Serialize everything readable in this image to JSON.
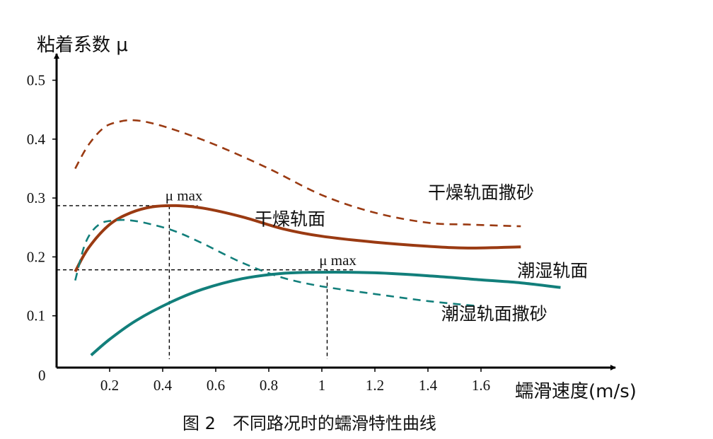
{
  "chart_data": {
    "type": "line",
    "title": "图 2　不同路况时的蠕滑特性曲线",
    "ylabel": "粘着系数 μ",
    "xlabel": "蠕滑速度(m/s)",
    "origin_label": "0",
    "x_ticks": [
      "0.2",
      "0.4",
      "0.6",
      "0.8",
      "1",
      "1.2",
      "1.4",
      "1.6"
    ],
    "x_tick_values": [
      0.2,
      0.4,
      0.6,
      0.8,
      1.0,
      1.2,
      1.4,
      1.6
    ],
    "y_ticks": [
      "0.1",
      "0.2",
      "0.3",
      "0.4",
      "0.5"
    ],
    "y_tick_values": [
      0.1,
      0.2,
      0.3,
      0.4,
      0.5
    ],
    "grid": false,
    "colors": {
      "dry": "#9a3a12",
      "wet": "#127f7b"
    },
    "series": [
      {
        "name": "干燥轨面撒砂",
        "color": "#9a3a12",
        "dash": true,
        "x": [
          0.07,
          0.12,
          0.18,
          0.24,
          0.29,
          0.35,
          0.45,
          0.6,
          0.8,
          1.0,
          1.2,
          1.4,
          1.55,
          1.75
        ],
        "y": [
          0.35,
          0.39,
          0.42,
          0.43,
          0.432,
          0.428,
          0.415,
          0.39,
          0.35,
          0.305,
          0.275,
          0.258,
          0.255,
          0.252
        ]
      },
      {
        "name": "干燥轨面",
        "color": "#9a3a12",
        "dash": false,
        "x": [
          0.07,
          0.12,
          0.2,
          0.28,
          0.36,
          0.45,
          0.55,
          0.7,
          0.85,
          1.0,
          1.2,
          1.4,
          1.55,
          1.75
        ],
        "y": [
          0.175,
          0.215,
          0.255,
          0.275,
          0.285,
          0.287,
          0.283,
          0.268,
          0.248,
          0.235,
          0.225,
          0.218,
          0.215,
          0.217
        ]
      },
      {
        "name": "潮湿轨面",
        "color": "#127f7b",
        "dash": false,
        "x": [
          0.13,
          0.2,
          0.3,
          0.43,
          0.55,
          0.7,
          0.85,
          1.0,
          1.2,
          1.4,
          1.6,
          1.75,
          1.9
        ],
        "y": [
          0.033,
          0.06,
          0.092,
          0.123,
          0.145,
          0.163,
          0.172,
          0.174,
          0.173,
          0.168,
          0.161,
          0.156,
          0.148
        ]
      },
      {
        "name": "潮湿轨面撒砂",
        "color": "#127f7b",
        "dash": true,
        "x": [
          0.07,
          0.11,
          0.16,
          0.22,
          0.28,
          0.36,
          0.45,
          0.55,
          0.7,
          0.85,
          1.0,
          1.2,
          1.4,
          1.6
        ],
        "y": [
          0.16,
          0.225,
          0.255,
          0.262,
          0.262,
          0.255,
          0.243,
          0.223,
          0.19,
          0.165,
          0.15,
          0.137,
          0.125,
          0.116
        ]
      }
    ],
    "series_labels": [
      {
        "series": 0,
        "text": "干燥轨面撒砂",
        "x": 1.6,
        "y": 0.299
      },
      {
        "series": 1,
        "text": "干燥轨面",
        "x": 0.88,
        "y": 0.254
      },
      {
        "series": 2,
        "text": "潮湿轨面",
        "x": 1.87,
        "y": 0.166
      },
      {
        "series": 3,
        "text": "潮湿轨面撒砂",
        "x": 1.65,
        "y": 0.093
      }
    ],
    "peak_markers": [
      {
        "label": "μ max",
        "x": 0.425,
        "y": 0.287,
        "label_x": 0.41,
        "label_y": 0.296
      },
      {
        "label": "μ max",
        "x": 1.02,
        "y": 0.178,
        "label_x": 0.99,
        "label_y": 0.186
      }
    ]
  }
}
